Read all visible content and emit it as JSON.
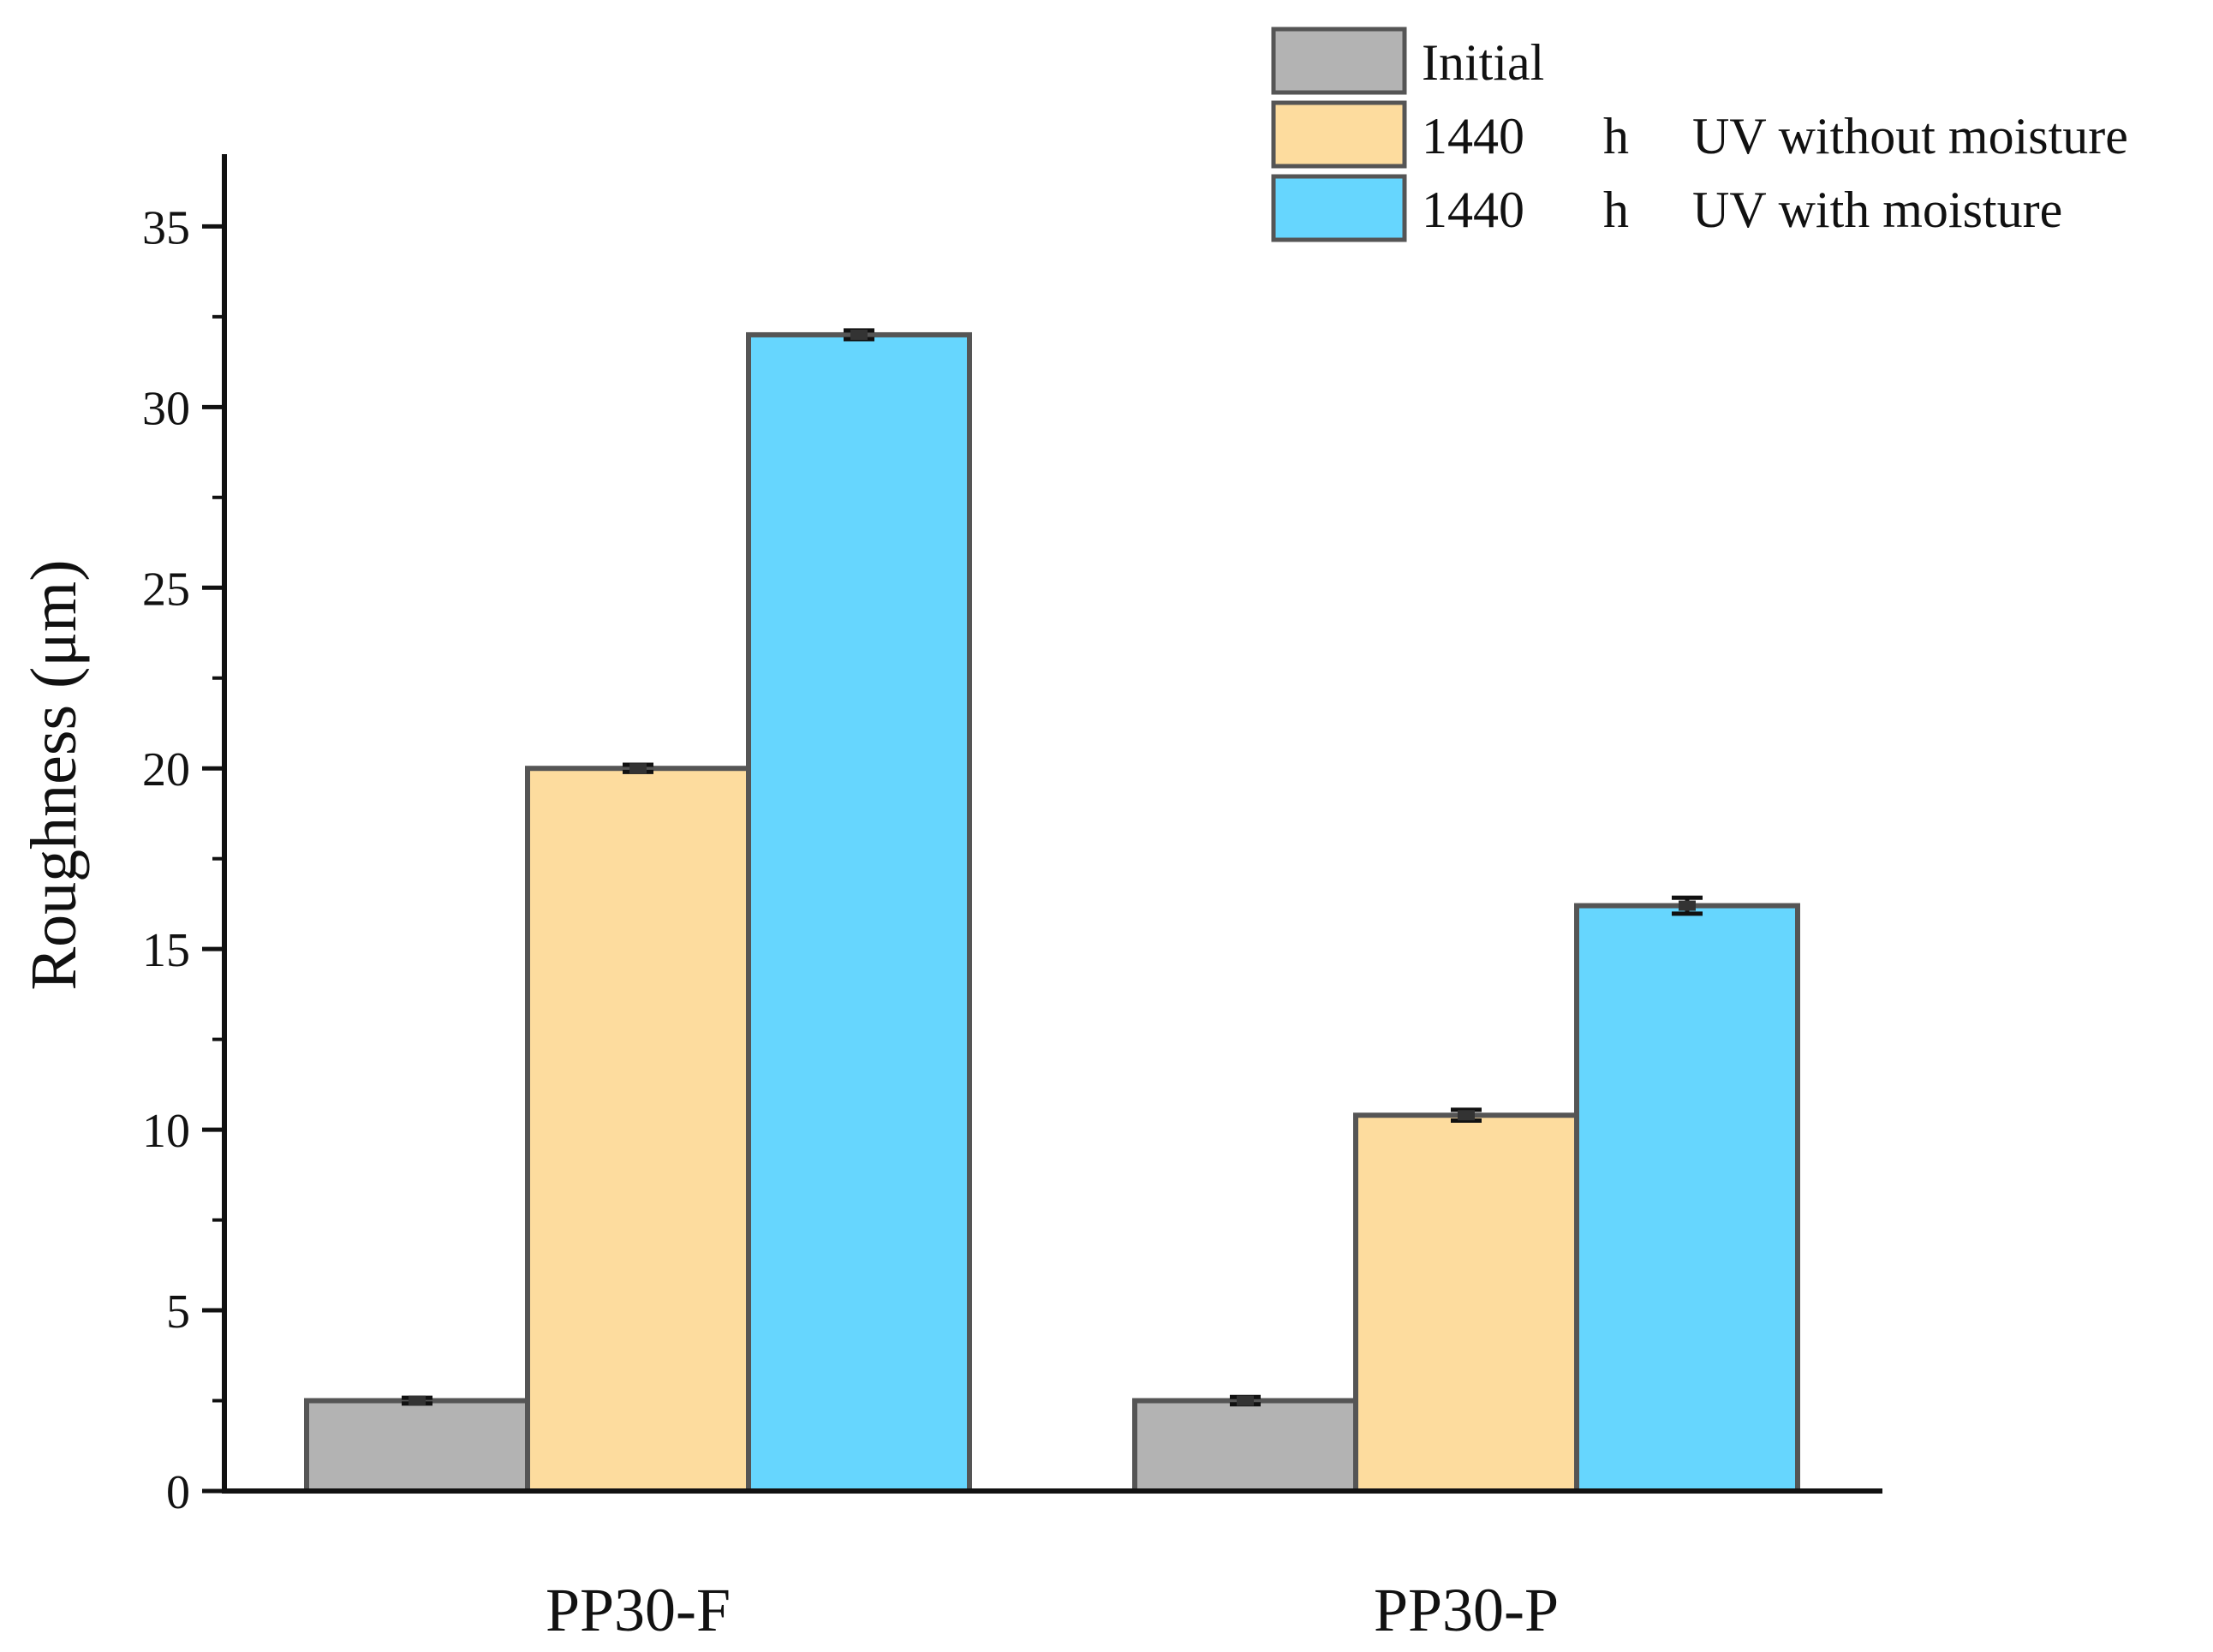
{
  "chart_data": {
    "type": "bar",
    "title": "",
    "xlabel": "",
    "ylabel": "Roughness (μm)",
    "ylim": [
      0,
      37
    ],
    "yticks": [
      0,
      5,
      10,
      15,
      20,
      25,
      30,
      35
    ],
    "ytick_labels": [
      "0",
      "5",
      "10",
      "15",
      "20",
      "25",
      "30",
      "35"
    ],
    "minor_tick_step": 2.5,
    "grid": false,
    "legend_position": "top-right",
    "categories": [
      "PP30-F",
      "PP30-P"
    ],
    "series": [
      {
        "name": "Initial",
        "legend_parts": [
          "Initial"
        ],
        "color": "#b3b3b3",
        "values": [
          2.5,
          2.5
        ],
        "errors": [
          0.08,
          0.1
        ]
      },
      {
        "name": "1440 h UV without moisture",
        "legend_parts": [
          "1440",
          "h",
          "UV without moisture"
        ],
        "color": "#fddc9e",
        "values": [
          20.0,
          10.4
        ],
        "errors": [
          0.1,
          0.15
        ]
      },
      {
        "name": "1440 h UV with moisture",
        "legend_parts": [
          "1440",
          "h",
          "UV with moisture"
        ],
        "color": "#66d6fe",
        "values": [
          32.0,
          16.2
        ],
        "errors": [
          0.12,
          0.22
        ]
      }
    ],
    "edge_color": "#555555",
    "axis_color": "#111111"
  }
}
